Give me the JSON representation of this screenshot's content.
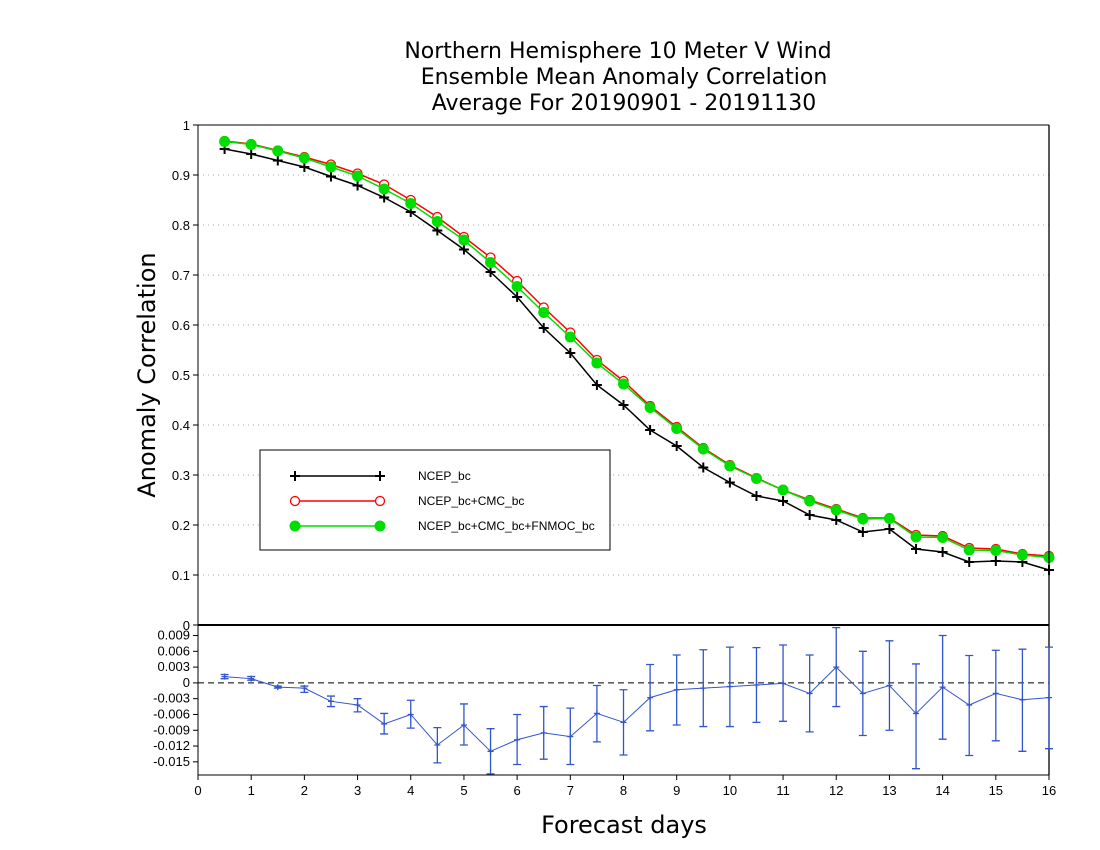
{
  "chart_data": [
    {
      "type": "line",
      "title": [
        "Northern Hemisphere 10 Meter V Wind",
        "Ensemble Mean Anomaly Correlation",
        "Average For 20190901 - 20191130"
      ],
      "xlabel": "Forecast days",
      "ylabel": "Anomaly Correlation",
      "xlim": [
        0,
        16
      ],
      "ylim": [
        0,
        1
      ],
      "xticks": [
        "0",
        "1",
        "2",
        "3",
        "4",
        "5",
        "6",
        "7",
        "8",
        "9",
        "10",
        "11",
        "12",
        "13",
        "14",
        "15",
        "16"
      ],
      "yticks": [
        "0",
        "0.1",
        "0.2",
        "0.3",
        "0.4",
        "0.5",
        "0.6",
        "0.7",
        "0.8",
        "0.9",
        "1"
      ],
      "grid": "horizontal dotted",
      "legend_position": "lower-left",
      "x": [
        0.5,
        1,
        1.5,
        2,
        2.5,
        3,
        3.5,
        4,
        4.5,
        5,
        5.5,
        6,
        6.5,
        7,
        7.5,
        8,
        8.5,
        9,
        9.5,
        10,
        10.5,
        11,
        11.5,
        12,
        12.5,
        13,
        13.5,
        14,
        14.5,
        15,
        15.5,
        16
      ],
      "series": [
        {
          "name": "NCEP_bc",
          "color": "#000000",
          "marker": "plus",
          "values": [
            0.952,
            0.942,
            0.929,
            0.916,
            0.897,
            0.879,
            0.855,
            0.826,
            0.789,
            0.751,
            0.706,
            0.656,
            0.594,
            0.544,
            0.48,
            0.44,
            0.39,
            0.358,
            0.315,
            0.285,
            0.258,
            0.248,
            0.22,
            0.21,
            0.186,
            0.192,
            0.152,
            0.146,
            0.126,
            0.128,
            0.126,
            0.11
          ]
        },
        {
          "name": "NCEP_bc+CMC_bc",
          "color": "#ff0000",
          "marker": "open-circle",
          "values": [
            0.968,
            0.962,
            0.949,
            0.936,
            0.921,
            0.903,
            0.881,
            0.85,
            0.816,
            0.776,
            0.735,
            0.688,
            0.635,
            0.585,
            0.53,
            0.488,
            0.438,
            0.396,
            0.354,
            0.32,
            0.294,
            0.27,
            0.25,
            0.232,
            0.214,
            0.214,
            0.18,
            0.178,
            0.154,
            0.152,
            0.142,
            0.138
          ]
        },
        {
          "name": "NCEP_bc+CMC_bc+FNMOC_bc",
          "color": "#00dd00",
          "marker": "filled-circle",
          "values": [
            0.967,
            0.961,
            0.948,
            0.934,
            0.916,
            0.898,
            0.872,
            0.843,
            0.807,
            0.77,
            0.725,
            0.677,
            0.625,
            0.576,
            0.524,
            0.482,
            0.435,
            0.393,
            0.352,
            0.318,
            0.293,
            0.27,
            0.248,
            0.23,
            0.212,
            0.213,
            0.176,
            0.175,
            0.15,
            0.149,
            0.14,
            0.135
          ]
        }
      ]
    },
    {
      "type": "line",
      "subtype": "difference-with-error-bars",
      "xlim": [
        0,
        16
      ],
      "ylim": [
        -0.0175,
        0.011
      ],
      "yticks": [
        "0.009",
        "0.006",
        "0.003",
        "0",
        "-0.003",
        "-0.006",
        "-0.009",
        "-0.012",
        "-0.015"
      ],
      "reference_line": 0,
      "x": [
        0.5,
        1,
        1.5,
        2,
        2.5,
        3,
        3.5,
        4,
        4.5,
        5,
        5.5,
        6,
        6.5,
        7,
        7.5,
        8,
        8.5,
        9,
        9.5,
        10,
        10.5,
        11,
        11.5,
        12,
        12.5,
        13,
        13.5,
        14,
        14.5,
        15,
        15.5,
        16
      ],
      "series": [
        {
          "color": "#3355cc",
          "values": [
            0.0012,
            0.0008,
            -0.0008,
            -0.001,
            -0.0035,
            -0.0042,
            -0.0078,
            -0.006,
            -0.0118,
            -0.008,
            -0.013,
            -0.0108,
            -0.0095,
            -0.0102,
            -0.0058,
            -0.0075,
            -0.0028,
            -0.0013,
            -0.001,
            -0.0007,
            -0.0004,
            -0.0001,
            -0.002,
            0.003,
            -0.002,
            -0.0005,
            -0.0058,
            -0.0008,
            -0.0042,
            -0.002,
            -0.0032,
            -0.0028
          ],
          "error_low": [
            0.0008,
            0.0005,
            -0.001,
            -0.0018,
            -0.0045,
            -0.0055,
            -0.0097,
            -0.0086,
            -0.0152,
            -0.0118,
            -0.0173,
            -0.0155,
            -0.0145,
            -0.0155,
            -0.0112,
            -0.0137,
            -0.0091,
            -0.008,
            -0.0083,
            -0.0083,
            -0.0075,
            -0.0073,
            -0.0093,
            -0.0045,
            -0.01,
            -0.009,
            -0.0163,
            -0.0107,
            -0.0138,
            -0.011,
            -0.013,
            -0.0125
          ],
          "error_high": [
            0.0016,
            0.0012,
            -0.0006,
            -0.0006,
            -0.0025,
            -0.003,
            -0.0058,
            -0.0033,
            -0.0085,
            -0.004,
            -0.0087,
            -0.006,
            -0.0045,
            -0.0048,
            -0.0005,
            -0.0013,
            0.0035,
            0.0053,
            0.0063,
            0.0068,
            0.0067,
            0.0072,
            0.0053,
            0.0105,
            0.006,
            0.008,
            0.0036,
            0.009,
            0.0052,
            0.0062,
            0.0064,
            0.0068
          ]
        }
      ]
    }
  ]
}
